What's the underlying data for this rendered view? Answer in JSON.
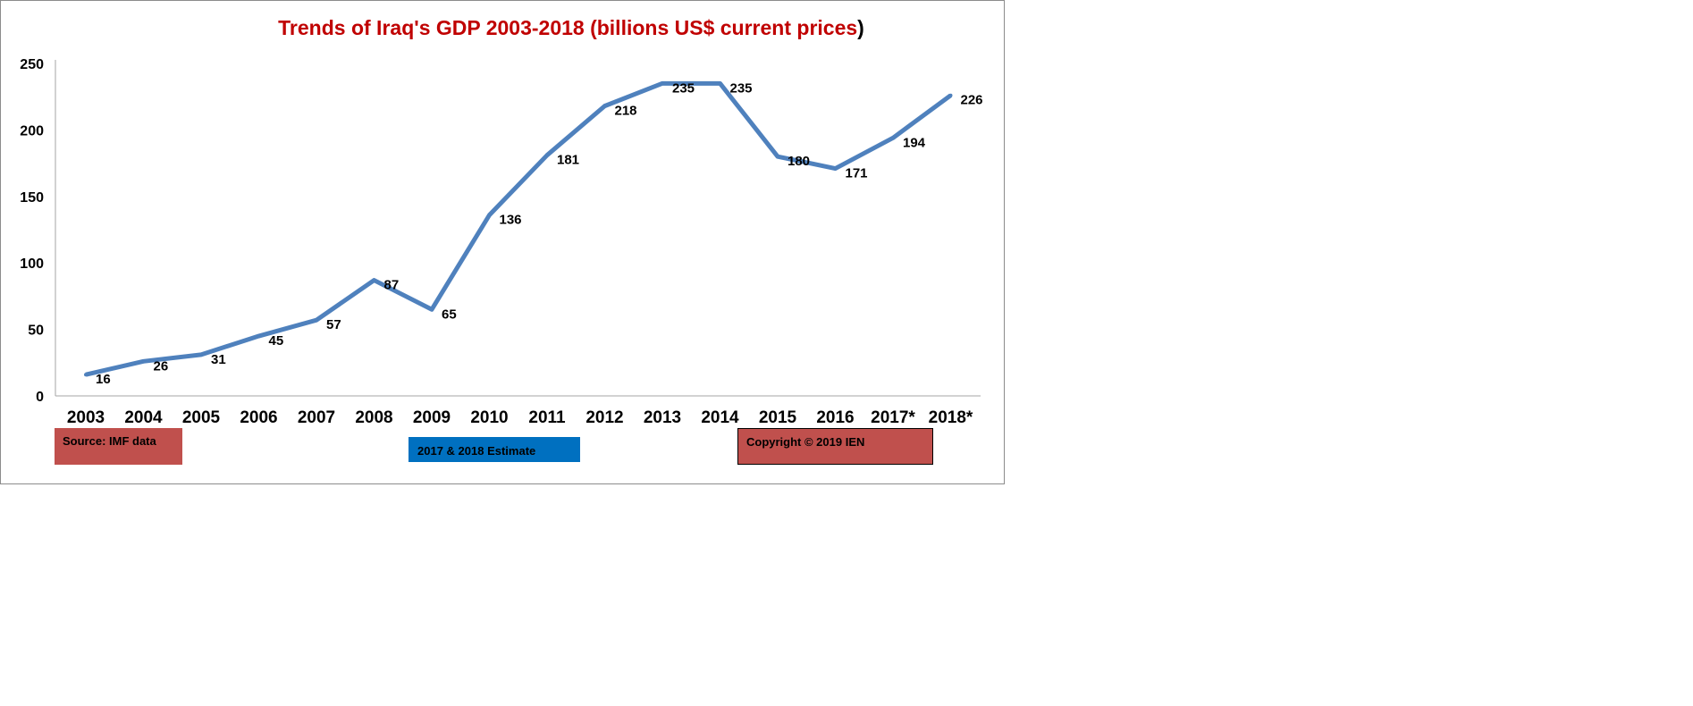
{
  "chart_data": {
    "type": "line",
    "title_main": "Trends of Iraq's GDP 2003-2018  (billions US$ current prices",
    "title_close": ")",
    "categories": [
      "2003",
      "2004",
      "2005",
      "2006",
      "2007",
      "2008",
      "2009",
      "2010",
      "2011",
      "2012",
      "2013",
      "2014",
      "2015",
      "2016",
      "2017*",
      "2018*"
    ],
    "values": [
      16,
      26,
      31,
      45,
      57,
      87,
      65,
      136,
      181,
      218,
      235,
      235,
      180,
      171,
      194,
      226
    ],
    "ylim": [
      0,
      250
    ],
    "yticks": [
      0,
      50,
      100,
      150,
      200,
      250
    ],
    "grid": false,
    "line_color": "#4f81bd",
    "title_color": "#c00000"
  },
  "notes": {
    "source": "Source: IMF data",
    "estimate": "2017 & 2018 Estimate",
    "copyright": "Copyright © 2019 IEN"
  }
}
